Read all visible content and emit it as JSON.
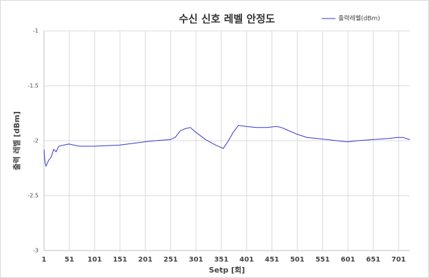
{
  "chart_data": {
    "type": "line",
    "title": "수신 신호 레벨 안정도",
    "xlabel": "Setp [회]",
    "ylabel": "출력 레벨 [dBm]",
    "x": [
      1,
      3,
      5,
      10,
      15,
      20,
      25,
      30,
      40,
      50,
      70,
      100,
      150,
      200,
      220,
      250,
      260,
      270,
      280,
      290,
      300,
      320,
      340,
      355,
      365,
      375,
      385,
      400,
      420,
      440,
      460,
      470,
      480,
      500,
      520,
      540,
      560,
      580,
      600,
      620,
      650,
      680,
      700,
      710,
      723
    ],
    "series": [
      {
        "name": "출력레벨(dBm)",
        "color": "#3333cc",
        "values": [
          -2.08,
          -2.2,
          -2.23,
          -2.18,
          -2.15,
          -2.08,
          -2.1,
          -2.05,
          -2.04,
          -2.03,
          -2.05,
          -2.05,
          -2.04,
          -2.01,
          -2.0,
          -1.99,
          -1.97,
          -1.91,
          -1.89,
          -1.88,
          -1.92,
          -1.99,
          -2.04,
          -2.07,
          -2.0,
          -1.92,
          -1.86,
          -1.87,
          -1.88,
          -1.88,
          -1.87,
          -1.88,
          -1.9,
          -1.94,
          -1.97,
          -1.98,
          -1.99,
          -2.0,
          -2.01,
          -2.0,
          -1.99,
          -1.98,
          -1.97,
          -1.97,
          -1.99
        ]
      }
    ],
    "xlim": [
      1,
      723
    ],
    "xticks": [
      1,
      51,
      101,
      151,
      201,
      251,
      301,
      351,
      401,
      451,
      501,
      551,
      601,
      651,
      701
    ],
    "ylim": [
      -3,
      -1
    ],
    "yticks": [
      -3,
      -2.5,
      -2,
      -1.5,
      -1
    ],
    "grid": true,
    "legend": "top-right"
  }
}
